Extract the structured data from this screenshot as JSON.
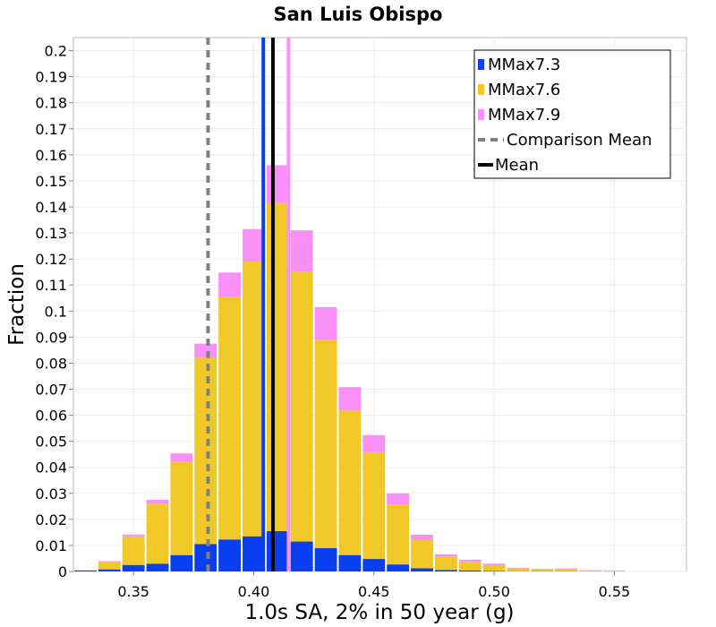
{
  "chart_data": {
    "type": "bar",
    "stacked": true,
    "title": "San Luis Obispo",
    "xlabel": "1.0s SA, 2% in 50 year (g)",
    "ylabel": "Fraction",
    "xlim": [
      0.325,
      0.58
    ],
    "ylim": [
      0,
      0.205
    ],
    "xticks": [
      "0.35",
      "0.40",
      "0.45",
      "0.50",
      "0.55"
    ],
    "yticks": [
      "0",
      "0.01",
      "0.02",
      "0.03",
      "0.04",
      "0.05",
      "0.06",
      "0.07",
      "0.08",
      "0.09",
      "0.1",
      "0.11",
      "0.12",
      "0.13",
      "0.14",
      "0.15",
      "0.16",
      "0.17",
      "0.18",
      "0.19",
      "0.2"
    ],
    "bin_width": 0.01,
    "x": [
      0.33,
      0.34,
      0.35,
      0.36,
      0.37,
      0.38,
      0.39,
      0.4,
      0.41,
      0.42,
      0.43,
      0.44,
      0.45,
      0.46,
      0.47,
      0.48,
      0.49,
      0.5,
      0.51,
      0.52,
      0.53,
      0.54,
      0.55
    ],
    "series": [
      {
        "name": "MMax7.3",
        "color": "#0a3ff0",
        "values": [
          0.0004,
          0.0008,
          0.0025,
          0.003,
          0.0063,
          0.0105,
          0.0123,
          0.0135,
          0.0155,
          0.0115,
          0.009,
          0.0063,
          0.0048,
          0.0027,
          0.0012,
          0.0006,
          0.0004,
          0.0002,
          0.0001,
          0.0001,
          0.0001,
          0.0,
          0.0
        ]
      },
      {
        "name": "MMax7.6",
        "color": "#f0c828",
        "values": [
          0.0,
          0.003,
          0.011,
          0.023,
          0.036,
          0.0715,
          0.093,
          0.1055,
          0.126,
          0.1035,
          0.08,
          0.0555,
          0.041,
          0.023,
          0.011,
          0.005,
          0.0033,
          0.0022,
          0.0011,
          0.0008,
          0.0009,
          0.0004,
          0.0003
        ]
      },
      {
        "name": "MMax7.9",
        "color": "#f990f7",
        "values": [
          0.0,
          0.0002,
          0.0007,
          0.0015,
          0.003,
          0.0055,
          0.0095,
          0.0125,
          0.0145,
          0.016,
          0.0125,
          0.009,
          0.0065,
          0.0043,
          0.0019,
          0.001,
          0.0008,
          0.0006,
          0.0002,
          0.0001,
          0.0002,
          0.0001,
          0.0001
        ]
      }
    ],
    "lines": [
      {
        "name": "Comparison Mean",
        "x": 0.381,
        "color": "#808080",
        "dashed": true
      },
      {
        "name": "Mean",
        "x": 0.408,
        "color": "#000000",
        "dashed": false
      }
    ],
    "branch_lines": [
      {
        "x": 0.404,
        "color": "#0a3ff0"
      },
      {
        "x": 0.4145,
        "color": "#f990f7"
      }
    ],
    "legend": [
      "MMax7.3",
      "MMax7.6",
      "MMax7.9",
      "Comparison Mean",
      "Mean"
    ],
    "legend_position": "top-right",
    "grid": true
  }
}
